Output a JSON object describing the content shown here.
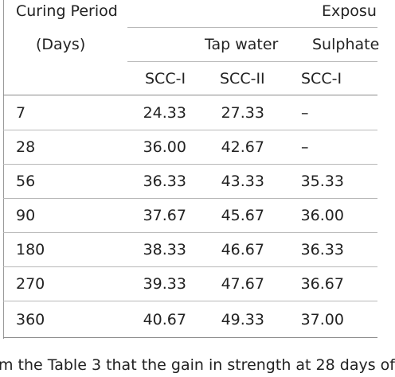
{
  "table": {
    "header": {
      "period_line1": "Curing Period",
      "period_line2": "(Days)",
      "exposure": "Exposu",
      "tap_water": "Tap water",
      "sulphate": "Sulphate",
      "scc1_a": "SCC-I",
      "scc2": "SCC-II",
      "scc1_b": "SCC-I"
    },
    "rows": [
      {
        "day": "7",
        "v1": "24.33",
        "v2": "27.33",
        "v3": "–"
      },
      {
        "day": "28",
        "v1": "36.00",
        "v2": "42.67",
        "v3": "–"
      },
      {
        "day": "56",
        "v1": "36.33",
        "v2": "43.33",
        "v3": "35.33"
      },
      {
        "day": "90",
        "v1": "37.67",
        "v2": "45.67",
        "v3": "36.00"
      },
      {
        "day": "180",
        "v1": "38.33",
        "v2": "46.67",
        "v3": "36.33"
      },
      {
        "day": "270",
        "v1": "39.33",
        "v2": "47.67",
        "v3": "36.67"
      },
      {
        "day": "360",
        "v1": "40.67",
        "v2": "49.33",
        "v3": "37.00"
      }
    ]
  },
  "caption": "m the Table 3 that the gain in strength at 28 days of"
}
